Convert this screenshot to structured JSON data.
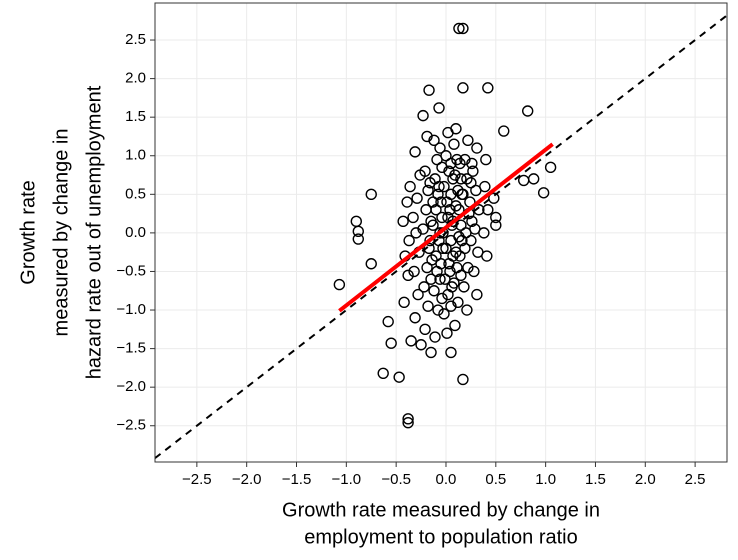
{
  "chart_data": {
    "type": "scatter",
    "xlabel": [
      "Growth rate measured by change in",
      "employment to population ratio"
    ],
    "ylabel": [
      "Growth rate",
      "measured by change in",
      "hazard rate out of unemployment"
    ],
    "xlim": [
      -2.92,
      2.82
    ],
    "ylim": [
      -2.97,
      2.98
    ],
    "xticks": [
      {
        "value": -2.5,
        "label": "−2.5"
      },
      {
        "value": -2,
        "label": "−2.0"
      },
      {
        "value": -1.5,
        "label": "−1.5"
      },
      {
        "value": -1,
        "label": "−1.0"
      },
      {
        "value": -0.5,
        "label": "−0.5"
      },
      {
        "value": 0,
        "label": "0.0"
      },
      0.5,
      {
        "value": 1,
        "label": "1.0"
      },
      1.5,
      {
        "value": 2,
        "label": "2.0"
      },
      2.5
    ],
    "yticks": [
      {
        "value": -2.5,
        "label": "−2.5"
      },
      {
        "value": -2,
        "label": "−2.0"
      },
      {
        "value": -1.5,
        "label": "−1.5"
      },
      {
        "value": -1,
        "label": "−1.0"
      },
      {
        "value": -0.5,
        "label": "−0.5"
      },
      {
        "value": 0,
        "label": "0.0"
      },
      0.5,
      {
        "value": 1,
        "label": "1.0"
      },
      1.5,
      {
        "value": 2,
        "label": "2.0"
      },
      2.5
    ],
    "grid": true,
    "color": "#000000",
    "reference_line": {
      "slope": 1,
      "intercept": 0,
      "color": "#000000"
    },
    "fit_line": {
      "x": [
        -1.07,
        1.07
      ],
      "y": [
        -1.01,
        1.15
      ],
      "color": "#ff0000"
    },
    "x": [
      0.13,
      0.17,
      -0.17,
      0.17,
      0.42,
      0.82,
      -0.07,
      -0.23,
      -0.75,
      -0.9,
      -0.88,
      -0.88,
      -0.75,
      -1.07,
      -0.58,
      -0.55,
      -0.63,
      -0.47,
      0.17,
      -0.38,
      -0.38,
      0.98,
      1.05,
      0.88,
      0.78,
      0.58,
      0.5,
      -0.35,
      -0.25,
      -0.15,
      0.05,
      -0.42,
      -0.38,
      -0.41,
      -0.37,
      -0.43,
      -0.39,
      -0.36,
      -0.31,
      -0.28,
      -0.32,
      -0.27,
      -0.3,
      -0.33,
      -0.29,
      -0.26,
      -0.31,
      -0.21,
      -0.18,
      -0.22,
      -0.19,
      -0.17,
      -0.23,
      -0.2,
      -0.18,
      -0.21,
      -0.19,
      -0.11,
      -0.08,
      -0.12,
      -0.09,
      -0.1,
      -0.07,
      -0.13,
      -0.1,
      -0.08,
      -0.11,
      -0.09,
      -0.12,
      0.01,
      -0.02,
      0.02,
      -0.01,
      0.03,
      0.0,
      -0.03,
      0.02,
      0.01,
      -0.02,
      0.03,
      0.0,
      0.02,
      0.09,
      0.12,
      0.08,
      0.11,
      0.1,
      0.13,
      0.07,
      0.1,
      0.12,
      0.09,
      0.11,
      0.08,
      0.1,
      0.21,
      0.18,
      0.22,
      0.19,
      0.2,
      0.23,
      0.17,
      0.21,
      0.19,
      0.22,
      0.31,
      0.28,
      0.32,
      0.29,
      0.33,
      0.3,
      0.27,
      0.31,
      0.41,
      0.38,
      0.42,
      0.39,
      0.4,
      0.5,
      0.48,
      -0.04,
      -0.06,
      -0.05,
      -0.03,
      -0.06,
      -0.04,
      -0.05,
      -0.07,
      -0.04,
      -0.06,
      0.05,
      0.06,
      0.04,
      0.07,
      0.05,
      0.06,
      0.04,
      0.05,
      0.07,
      0.05,
      0.15,
      0.14,
      0.16,
      0.15,
      0.13,
      0.16,
      0.15,
      0.14,
      -0.15,
      -0.14,
      -0.16,
      -0.15,
      -0.13,
      -0.16,
      0.25,
      0.26,
      0.24,
      0.25,
      0.26
    ],
    "values": [
      2.65,
      2.65,
      1.85,
      1.88,
      1.88,
      1.58,
      1.62,
      1.52,
      0.5,
      0.15,
      0.02,
      -0.08,
      -0.4,
      -0.67,
      -1.15,
      -1.43,
      -1.82,
      -1.87,
      -1.9,
      -2.41,
      -2.46,
      0.52,
      0.85,
      0.7,
      0.68,
      1.32,
      0.2,
      -1.4,
      -1.45,
      -1.55,
      -1.55,
      -0.9,
      -0.55,
      -0.3,
      -0.1,
      0.15,
      0.4,
      0.6,
      -1.1,
      -0.8,
      -0.5,
      -0.25,
      0.0,
      0.2,
      0.45,
      0.75,
      1.05,
      -1.25,
      -0.95,
      -0.7,
      -0.45,
      -0.2,
      0.05,
      0.3,
      0.55,
      0.8,
      1.25,
      -1.35,
      -1.0,
      -0.75,
      -0.5,
      -0.3,
      -0.1,
      0.1,
      0.3,
      0.5,
      0.7,
      0.95,
      1.2,
      -1.3,
      -1.05,
      -0.8,
      -0.6,
      -0.4,
      -0.2,
      0.0,
      0.2,
      0.4,
      0.6,
      0.8,
      1.0,
      1.3,
      -1.2,
      -0.9,
      -0.65,
      -0.45,
      -0.25,
      -0.05,
      0.15,
      0.35,
      0.55,
      0.75,
      0.95,
      1.15,
      1.35,
      -1.0,
      -0.7,
      -0.45,
      -0.2,
      0.0,
      0.25,
      0.5,
      0.7,
      0.95,
      1.2,
      -0.8,
      -0.5,
      -0.25,
      0.05,
      0.3,
      0.55,
      0.8,
      1.1,
      -0.3,
      0.0,
      0.3,
      0.6,
      0.95,
      0.1,
      0.45,
      -0.85,
      -0.6,
      -0.4,
      -0.2,
      0.0,
      0.2,
      0.4,
      0.6,
      0.85,
      1.1,
      -0.95,
      -0.7,
      -0.5,
      -0.3,
      -0.1,
      0.1,
      0.3,
      0.5,
      0.7,
      0.9,
      -0.55,
      -0.3,
      -0.1,
      0.1,
      0.3,
      0.5,
      0.7,
      0.9,
      -0.6,
      -0.35,
      -0.1,
      0.15,
      0.4,
      0.65,
      -0.1,
      0.15,
      0.4,
      0.65,
      0.9
    ]
  }
}
